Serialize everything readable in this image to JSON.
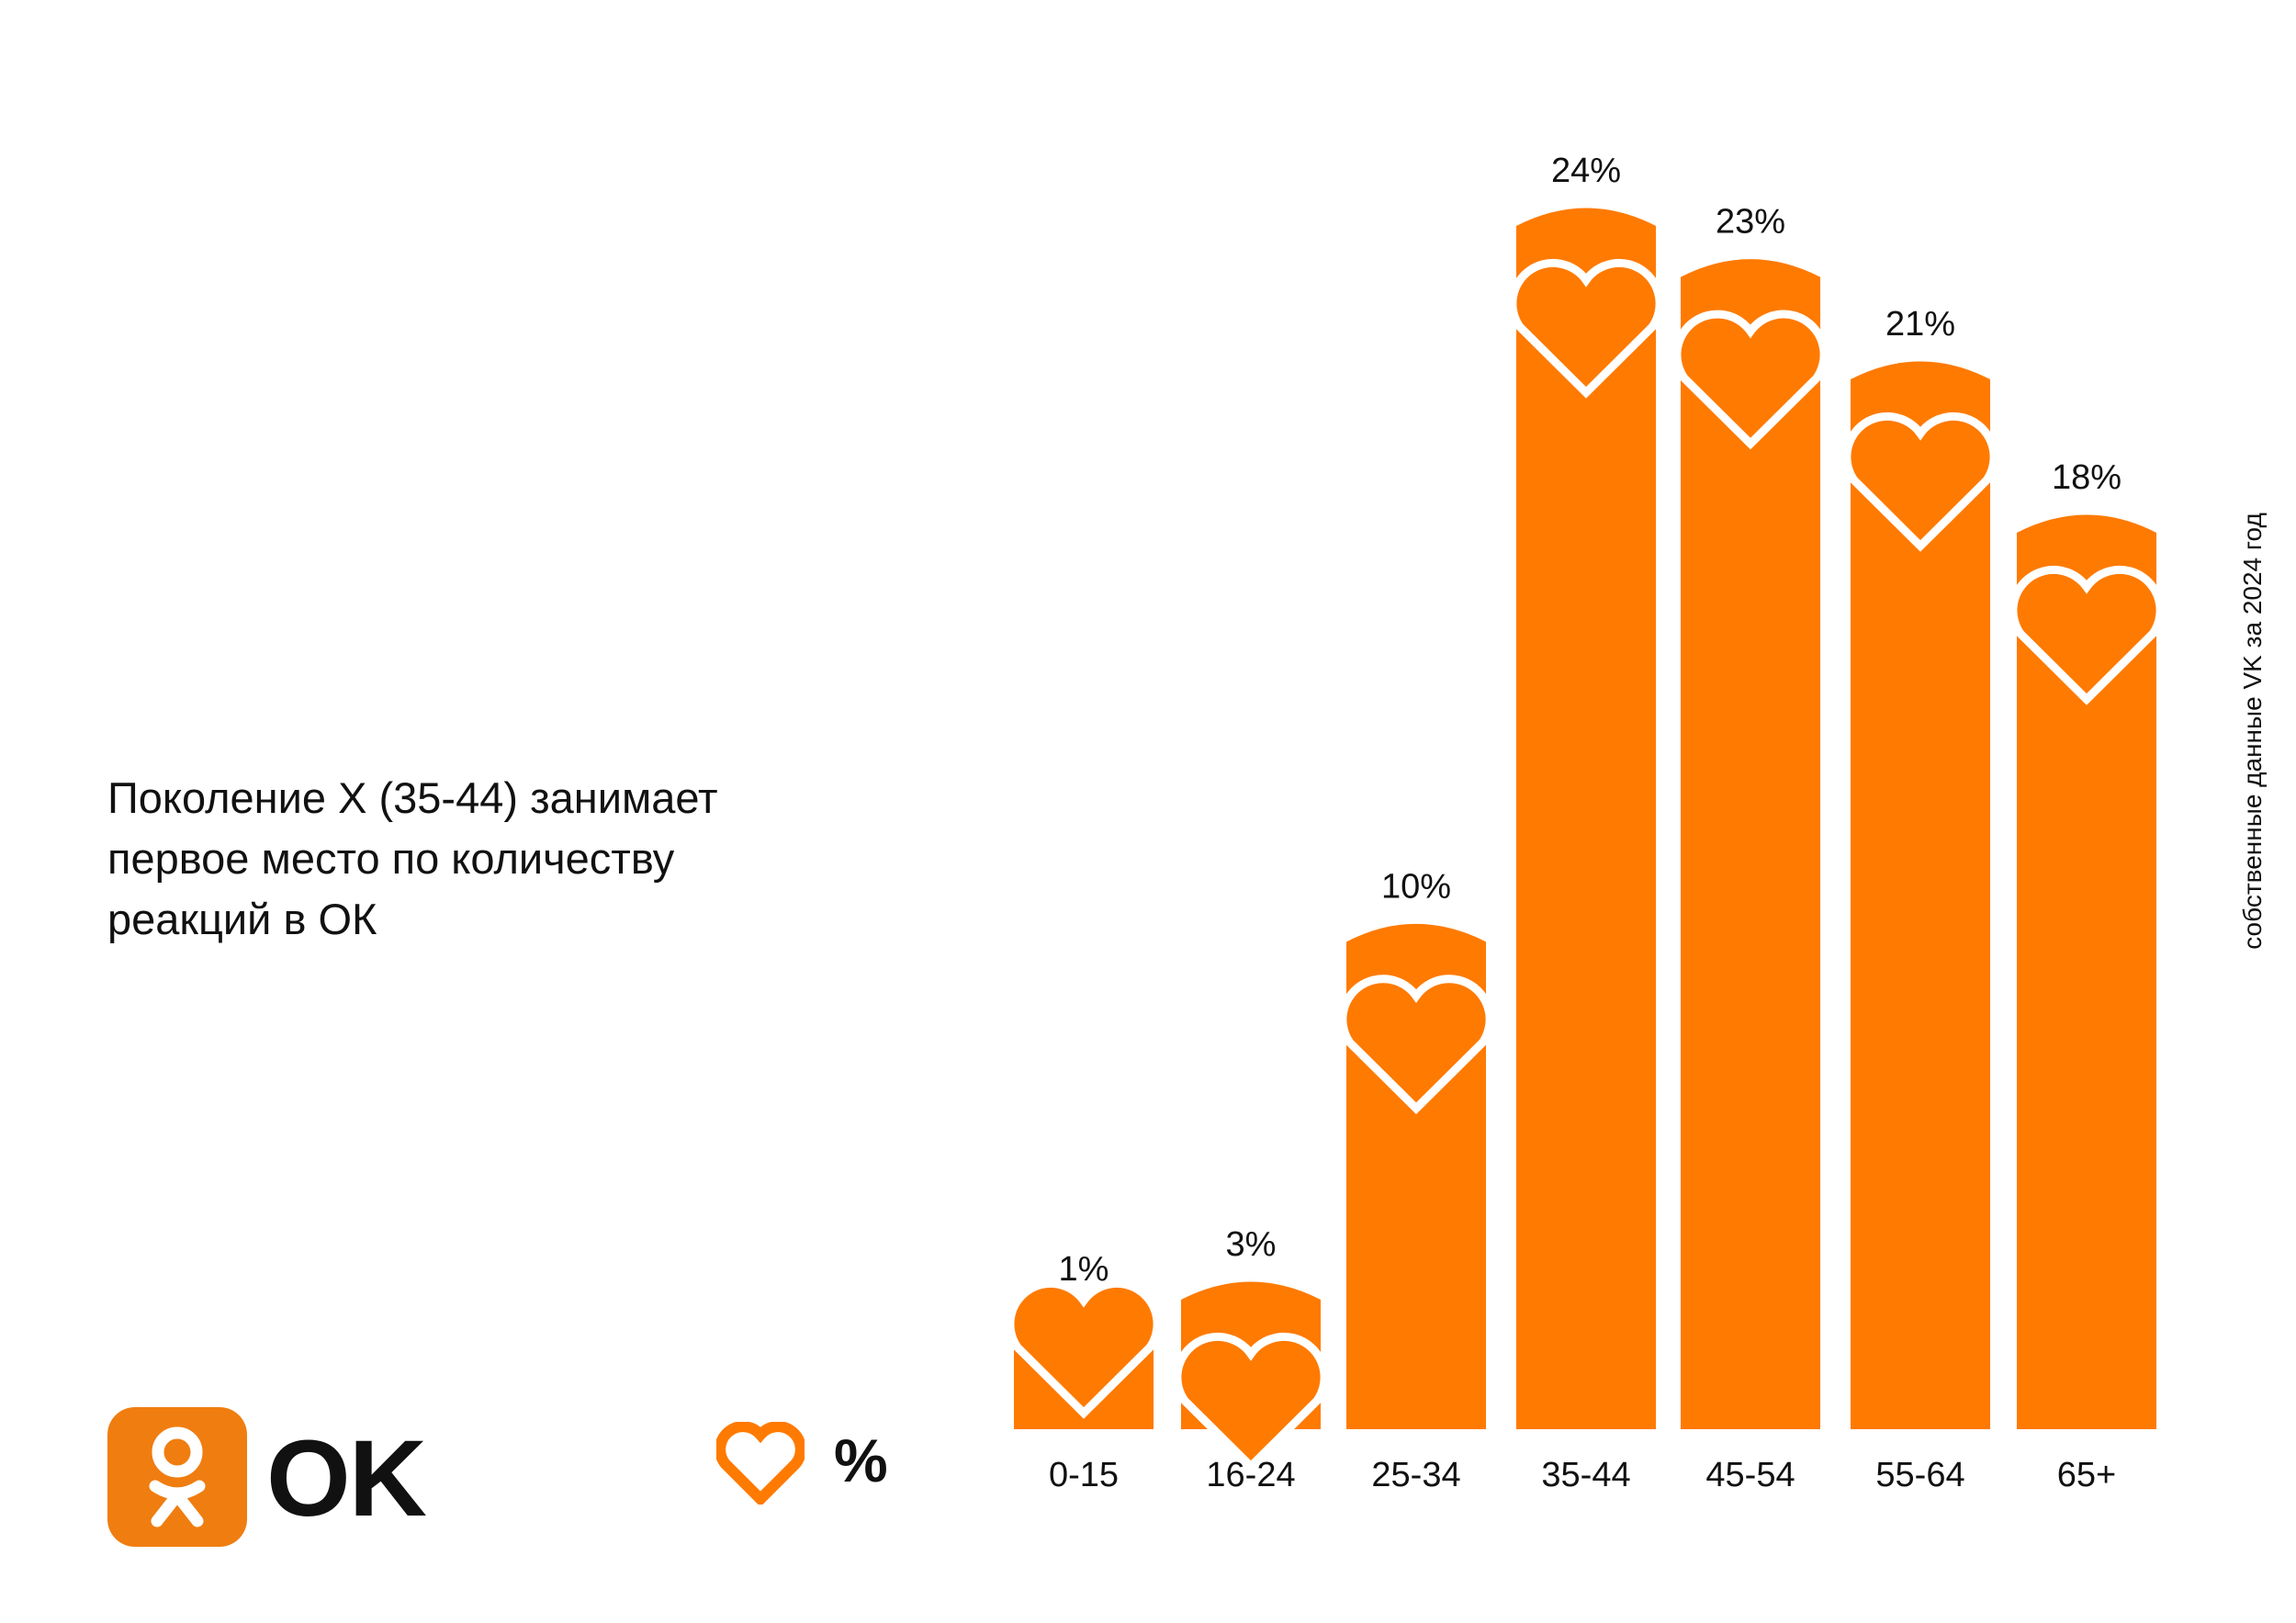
{
  "headline": {
    "line1": "Поколение X (35-44) занимает",
    "line2": "первое место по количеству",
    "line3": "реакций в ОК"
  },
  "source_note": "собственные данные VK за 2024 год",
  "logo": {
    "icon": "ok-person-icon",
    "wordmark": "OK"
  },
  "legend": {
    "icon": "heart-icon",
    "label": "%"
  },
  "colors": {
    "accent": "#FF7A00",
    "text": "#111111",
    "background": "#FFFFFF"
  },
  "chart_data": {
    "type": "bar",
    "categories": [
      "0-15",
      "16-24",
      "25-34",
      "35-44",
      "45-54",
      "55-64",
      "65+"
    ],
    "values": [
      1,
      3,
      10,
      24,
      23,
      21,
      18
    ],
    "value_labels": [
      "1%",
      "3%",
      "10%",
      "24%",
      "23%",
      "21%",
      "18%"
    ],
    "ylim": [
      0,
      24
    ],
    "grid": false,
    "bar_color": "#FF7A00",
    "marker": "heart-icon"
  }
}
